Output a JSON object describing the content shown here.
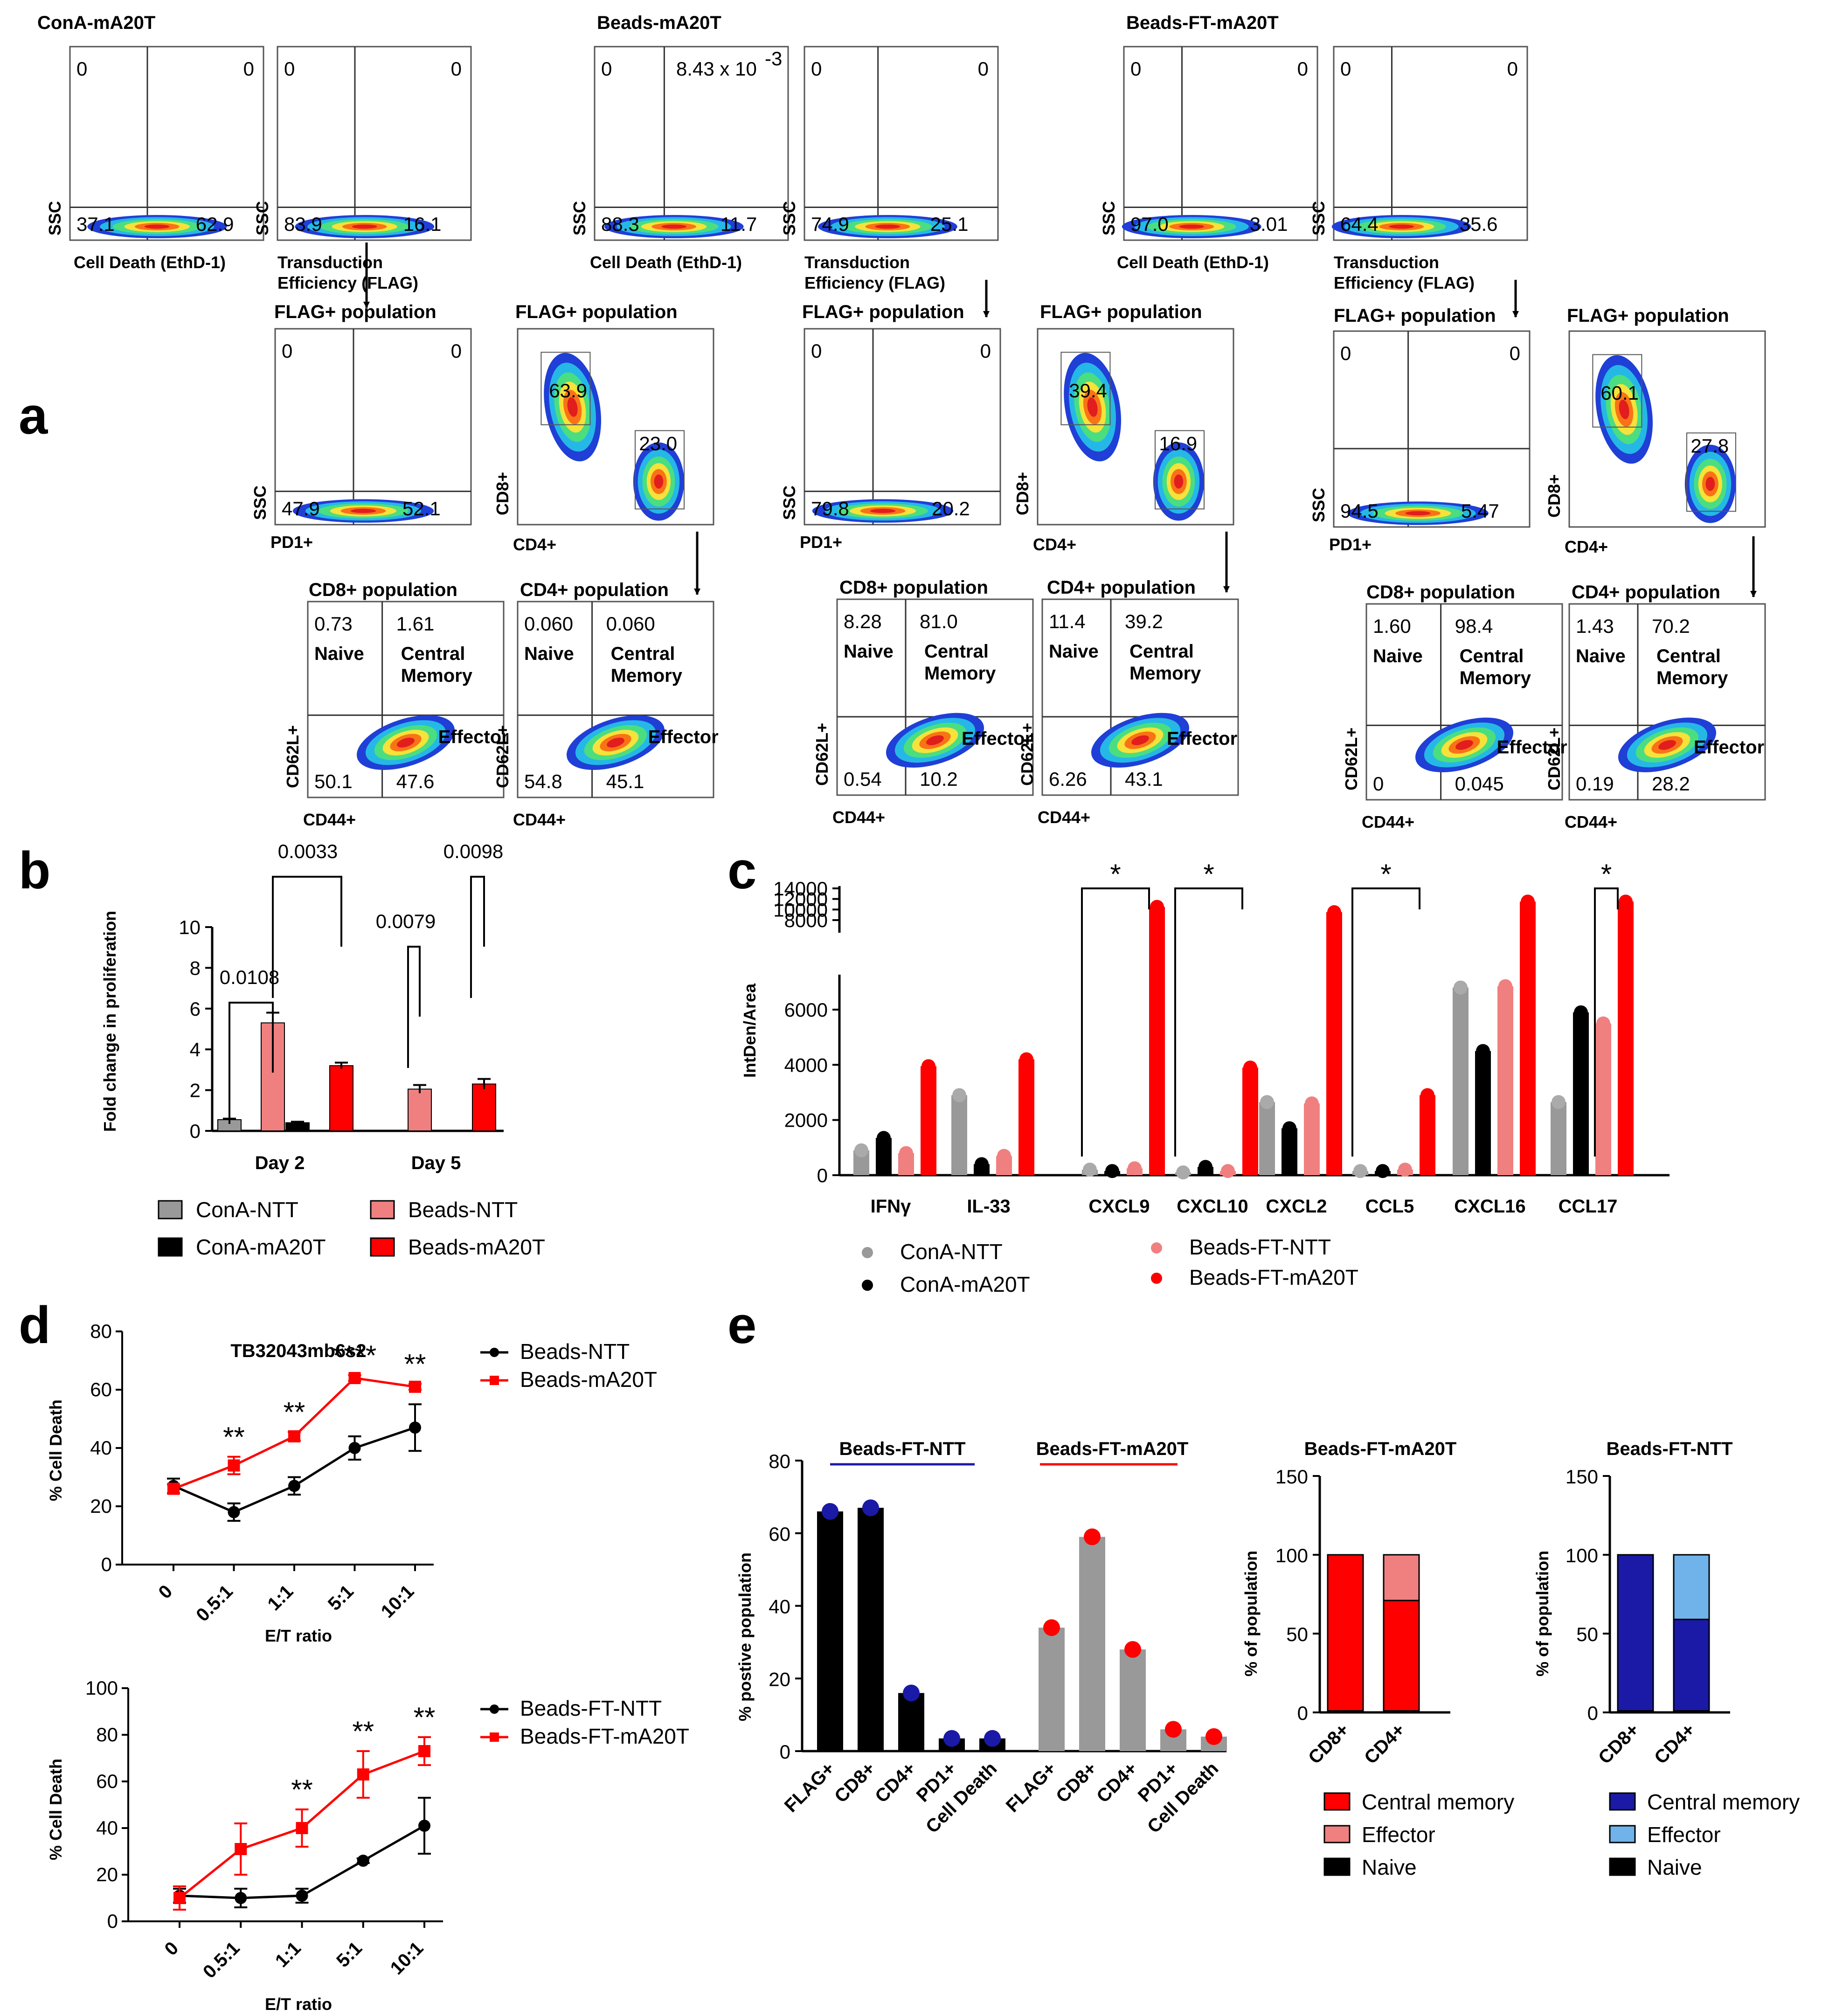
{
  "panel_labels": {
    "a": "a",
    "b": "b",
    "c": "c",
    "d": "d",
    "e": "e"
  },
  "flow": {
    "conA_title": "ConA-mA20T",
    "beads_title": "Beads-mA20T",
    "beadsft_title": "Beads-FT-mA20T",
    "axis_ssc": "SSC",
    "axis_death": "Cell Death (EthD-1)",
    "axis_trans_line1": "Transduction",
    "axis_trans_line2": "Efficiency (FLAG)",
    "axis_pd1": "PD1+",
    "axis_cd8": "CD8+",
    "axis_cd4": "CD4+",
    "axis_cd62l": "CD62L+",
    "axis_cd44": "CD44+",
    "flag_pop": "FLAG+ population",
    "cd8_pop": "CD8+ population",
    "cd4_pop": "CD4+ population",
    "naive": "Naive",
    "central1": "Central",
    "central2": "Memory",
    "effector": "Effector",
    "sci_main": "8.43 x 10",
    "sci_exp": "-3",
    "plots": [
      {
        "tl": "0",
        "tr": "0",
        "bl": "37.1",
        "br": "62.9"
      },
      {
        "tl": "0",
        "tr": "0",
        "bl": "83.9",
        "br": "16.1"
      },
      {
        "tl": "0",
        "tr": "",
        "bl": "88.3",
        "br": "11.7"
      },
      {
        "tl": "0",
        "tr": "0",
        "bl": "74.9",
        "br": "25.1"
      },
      {
        "tl": "0",
        "tr": "0",
        "bl": "97.0",
        "br": "3.01"
      },
      {
        "tl": "0",
        "tr": "0",
        "bl": "64.4",
        "br": "35.6"
      },
      {
        "tl": "0",
        "tr": "0",
        "bl": "47.9",
        "br": "52.1"
      },
      {
        "a": "63.9",
        "b": "23.0"
      },
      {
        "tl": "0",
        "tr": "0",
        "bl": "79.8",
        "br": "20.2"
      },
      {
        "a": "39.4",
        "b": "16.9"
      },
      {
        "tl": "0",
        "tr": "0",
        "bl": "94.5",
        "br": "5.47"
      },
      {
        "a": "60.1",
        "b": "27.8"
      },
      {
        "tl": "0.73",
        "tr": "1.61",
        "bl": "50.1",
        "br": "47.6"
      },
      {
        "tl": "0.060",
        "tr": "0.060",
        "bl": "54.8",
        "br": "45.1"
      },
      {
        "tl": "8.28",
        "tr": "81.0",
        "bl": "0.54",
        "br": "10.2"
      },
      {
        "tl": "11.4",
        "tr": "39.2",
        "bl": "6.26",
        "br": "43.1"
      },
      {
        "tl": "1.60",
        "tr": "98.4",
        "bl": "0",
        "br": "0.045"
      },
      {
        "tl": "1.43",
        "tr": "70.2",
        "bl": "0.19",
        "br": "28.2"
      }
    ]
  },
  "chart_data": [
    {
      "id": "b",
      "type": "bar",
      "ylabel": "Fold change in proliferation",
      "ylim": [
        0,
        10
      ],
      "yticks": [
        "0",
        "2",
        "4",
        "6",
        "8",
        "10"
      ],
      "categories": [
        "Day 2",
        "Day 5"
      ],
      "series": [
        {
          "name": "ConA-NTT",
          "color": "#999999",
          "values": [
            0.55,
            null
          ],
          "errors": [
            0.05,
            null
          ]
        },
        {
          "name": "Beads-NTT",
          "color": "#f08080",
          "values": [
            5.3,
            2.05
          ],
          "errors": [
            0.5,
            0.2
          ]
        },
        {
          "name": "ConA-mA20T",
          "color": "#000000",
          "values": [
            0.4,
            null
          ],
          "errors": [
            0.05,
            null
          ]
        },
        {
          "name": "Beads-mA20T",
          "color": "#ff0000",
          "values": [
            3.2,
            2.3
          ],
          "errors": [
            0.15,
            0.25
          ]
        }
      ],
      "annotations": [
        "0.0108",
        "0.0033",
        "0.0079",
        "0.0098"
      ]
    },
    {
      "id": "c",
      "type": "bar",
      "ylabel": "IntDen/Area",
      "yticks_lower": [
        "0",
        "2000",
        "4000",
        "6000"
      ],
      "yticks_upper": [
        "8000",
        "10000",
        "12000",
        "14000"
      ],
      "categories": [
        "IFNγ",
        "IL-33",
        "CXCL9",
        "CXCL10",
        "CXCL2",
        "CCL5",
        "CXCL16",
        "CCL17"
      ],
      "series": [
        {
          "name": "ConA-NTT",
          "color": "#999999",
          "values": [
            900,
            2900,
            200,
            100,
            2650,
            150,
            6800,
            2650
          ]
        },
        {
          "name": "ConA-mA20T",
          "color": "#000000",
          "values": [
            1350,
            400,
            150,
            300,
            1700,
            150,
            4500,
            5900
          ]
        },
        {
          "name": "Beads-FT-NTT",
          "color": "#f08080",
          "values": [
            800,
            700,
            250,
            150,
            2600,
            200,
            6850,
            5500
          ]
        },
        {
          "name": "Beads-FT-mA20T",
          "color": "#ff0000",
          "values": [
            3950,
            4200,
            10500,
            3900,
            9500,
            2900,
            11500,
            11500
          ]
        }
      ],
      "significance": "*"
    },
    {
      "id": "d1",
      "type": "line",
      "title": "TB32043mb6s2",
      "xlabel": "E/T ratio",
      "ylabel": "% Cell Death",
      "ylim": [
        0,
        80
      ],
      "yticks": [
        "0",
        "20",
        "40",
        "60",
        "80"
      ],
      "x": [
        "0",
        "0.5:1",
        "1:1",
        "5:1",
        "10:1"
      ],
      "series": [
        {
          "name": "Beads-NTT",
          "color": "#000000",
          "values": [
            27,
            18,
            27,
            40,
            47
          ],
          "errors": [
            2.5,
            3,
            3,
            4,
            8
          ]
        },
        {
          "name": "Beads-mA20T",
          "color": "#ff0000",
          "values": [
            26,
            34,
            44,
            64,
            61
          ],
          "errors": [
            1.5,
            3,
            1.5,
            1,
            1
          ]
        }
      ],
      "stars": [
        "",
        "**",
        "**",
        "****",
        "**"
      ]
    },
    {
      "id": "d2",
      "type": "line",
      "xlabel": "E/T ratio",
      "ylabel": "% Cell Death",
      "ylim": [
        0,
        100
      ],
      "yticks": [
        "0",
        "20",
        "40",
        "60",
        "80",
        "100"
      ],
      "x": [
        "0",
        "0.5:1",
        "1:1",
        "5:1",
        "10:1"
      ],
      "series": [
        {
          "name": "Beads-FT-NTT",
          "color": "#000000",
          "values": [
            11,
            10,
            11,
            26,
            41
          ],
          "errors": [
            3,
            4,
            3,
            1,
            12
          ]
        },
        {
          "name": "Beads-FT-mA20T",
          "color": "#ff0000",
          "values": [
            10,
            31,
            40,
            63,
            73
          ],
          "errors": [
            5,
            11,
            8,
            10,
            6
          ]
        }
      ],
      "stars": [
        "",
        "",
        "**",
        "**",
        "**"
      ]
    },
    {
      "id": "e1",
      "type": "bar",
      "ylabel": "% postive population",
      "ylim": [
        0,
        80
      ],
      "yticks": [
        "0",
        "20",
        "40",
        "60",
        "80"
      ],
      "group_labels": [
        "Beads-FT-NTT",
        "Beads-FT-mA20T"
      ],
      "categories": [
        "FLAG+",
        "CD8+",
        "CD4+",
        "PD1+",
        "Cell Death",
        "FLAG+",
        "CD8+",
        "CD4+",
        "PD1+",
        "Cell Death"
      ],
      "values": [
        66,
        67,
        16,
        3.5,
        3.5,
        34,
        59,
        28,
        6,
        4
      ],
      "colors": {
        "bar1": "#000000",
        "bar2": "#999999",
        "dot1": "#1a1aa6",
        "dot2": "#ff0000",
        "accent1": "#1a1aa6",
        "accent2": "#ff0000"
      }
    },
    {
      "id": "e2",
      "type": "bar",
      "title": "Beads-FT-mA20T",
      "ylabel": "% of population",
      "ylim": [
        0,
        150
      ],
      "yticks": [
        "0",
        "50",
        "100",
        "150"
      ],
      "categories": [
        "CD8+",
        "CD4+"
      ],
      "series": [
        {
          "name": "Central memory",
          "color": "#ff0000",
          "values": [
            99,
            70
          ]
        },
        {
          "name": "Effector",
          "color": "#f08080",
          "values": [
            0,
            29
          ]
        },
        {
          "name": "Naive",
          "color": "#000000",
          "values": [
            1,
            1
          ]
        }
      ]
    },
    {
      "id": "e3",
      "type": "bar",
      "title": "Beads-FT-NTT",
      "ylabel": "% of population",
      "ylim": [
        0,
        150
      ],
      "yticks": [
        "0",
        "50",
        "100",
        "150"
      ],
      "categories": [
        "CD8+",
        "CD4+"
      ],
      "series": [
        {
          "name": "Central memory",
          "color": "#1a1aa6",
          "values": [
            99,
            58
          ]
        },
        {
          "name": "Effector",
          "color": "#6fb3ea",
          "values": [
            0,
            41
          ]
        },
        {
          "name": "Naive",
          "color": "#000000",
          "values": [
            1,
            1
          ]
        }
      ]
    }
  ]
}
